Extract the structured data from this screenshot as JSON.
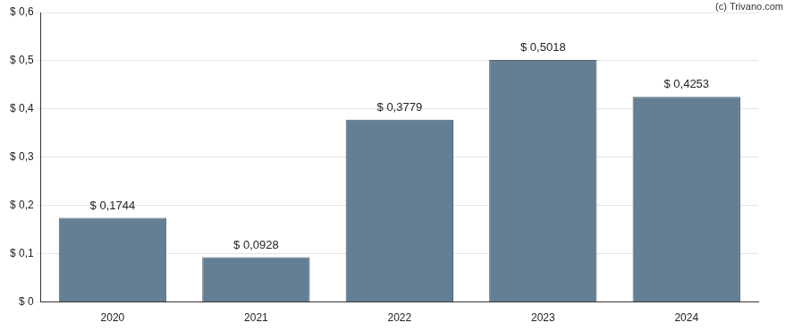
{
  "chart_data": {
    "type": "bar",
    "annotation": "(c) Trivano.com",
    "categories": [
      "2020",
      "2021",
      "2022",
      "2023",
      "2024"
    ],
    "values": [
      0.1744,
      0.0928,
      0.3779,
      0.5018,
      0.4253
    ],
    "value_labels": [
      "$ 0,1744",
      "$ 0,0928",
      "$ 0,3779",
      "$ 0,5018",
      "$ 0,4253"
    ],
    "data_labels": true,
    "color": "#647f94",
    "ylim": [
      0,
      0.6
    ],
    "yticks": [
      {
        "value": 0,
        "label": "$ 0"
      },
      {
        "value": 0.1,
        "label": "$ 0,1"
      },
      {
        "value": 0.2,
        "label": "$ 0,2"
      },
      {
        "value": 0.3,
        "label": "$ 0,3"
      },
      {
        "value": 0.4,
        "label": "$ 0,4"
      },
      {
        "value": 0.5,
        "label": "$ 0,5"
      },
      {
        "value": 0.6,
        "label": "$ 0,6"
      }
    ],
    "grid": true
  }
}
